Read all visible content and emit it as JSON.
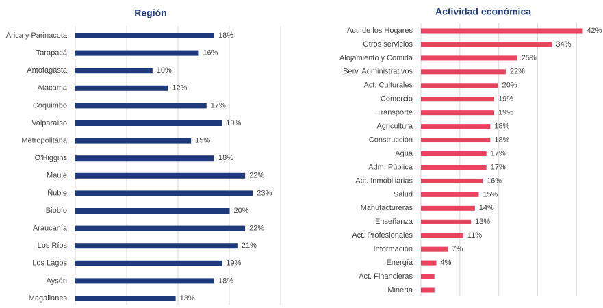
{
  "chart_data": [
    {
      "type": "barh",
      "title": "Región",
      "categories": [
        "Arica y Parinacota",
        "Tarapacá",
        "Antofagasta",
        "Atacama",
        "Coquimbo",
        "Valparaíso",
        "Metropolitana",
        "O'Higgins",
        "Maule",
        "Ñuble",
        "Biobío",
        "Araucanía",
        "Los Ríos",
        "Los Lagos",
        "Aysén",
        "Magallanes"
      ],
      "values": [
        18,
        16,
        10,
        12,
        17,
        19,
        15,
        18,
        22,
        23,
        20,
        22,
        21,
        19,
        18,
        13
      ],
      "value_labels": [
        "18%",
        "16%",
        "10%",
        "12%",
        "17%",
        "19%",
        "15%",
        "18%",
        "22%",
        "23%",
        "20%",
        "22%",
        "21%",
        "19%",
        "18%",
        "13%"
      ],
      "color": "#1f3a7a",
      "xlim": [
        0,
        26.6
      ],
      "xticks": [
        0,
        6.65,
        13.3,
        19.95,
        26.6
      ],
      "grid": true
    },
    {
      "type": "barh",
      "title": "Actividad económica",
      "categories": [
        "Act. de los Hogares",
        "Otros servicios",
        "Alojamiento y Comida",
        "Serv. Administrativos",
        "Act. Culturales",
        "Comercio",
        "Transporte",
        "Agricultura",
        "Construcción",
        "Agua",
        "Adm. Pública",
        "Act. Inmobiliarias",
        "Salud",
        "Manufactureras",
        "Enseñanza",
        "Act. Profesionales",
        "Información",
        "Energía",
        "Act. Financieras",
        "Minería"
      ],
      "values": [
        42,
        34,
        25,
        22,
        20,
        19,
        19,
        18,
        18,
        17,
        17,
        16,
        15,
        14,
        13,
        11,
        7,
        4,
        3.5,
        3.5
      ],
      "value_labels": [
        "42%",
        "34%",
        "25%",
        "22%",
        "20%",
        "19%",
        "19%",
        "18%",
        "18%",
        "17%",
        "17%",
        "16%",
        "15%",
        "14%",
        "13%",
        "11%",
        "7%",
        "4%",
        null,
        null
      ],
      "color": "#e8435f",
      "xlim": [
        0,
        40.5
      ],
      "xticks": [
        0,
        10.1,
        20.2,
        30.3,
        40.4
      ],
      "grid": true
    }
  ]
}
